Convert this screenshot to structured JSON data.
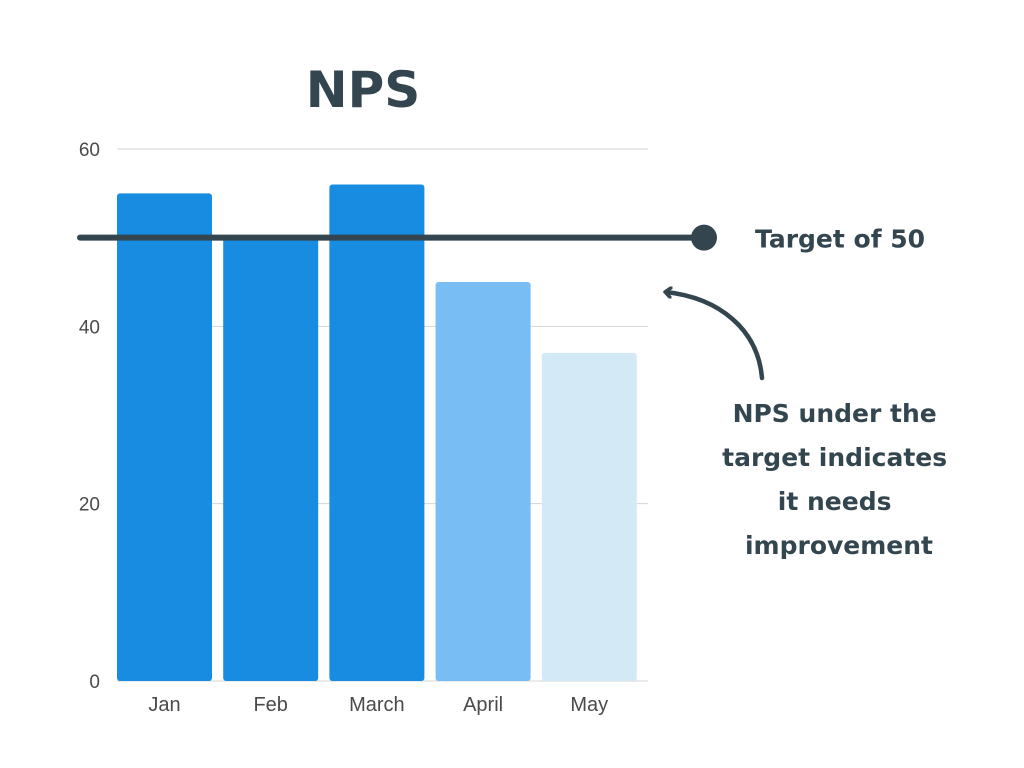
{
  "chart_data": {
    "type": "bar",
    "title": "NPS",
    "categories": [
      "Jan",
      "Feb",
      "March",
      "April",
      "May"
    ],
    "values": [
      55,
      50,
      56,
      45,
      37
    ],
    "bar_colors": [
      "#178ce0",
      "#178ce0",
      "#178ce0",
      "#78bdf4",
      "#d3e9f6"
    ],
    "ylim": [
      0,
      60
    ],
    "yticks": [
      0,
      20,
      40,
      60
    ],
    "grid": true,
    "target": {
      "value": 50,
      "label": "Target of 50",
      "color": "#33464f"
    },
    "annotation": {
      "lines": [
        "NPS under the",
        "target indicates",
        "it needs",
        "improvement"
      ],
      "color": "#33464f"
    }
  }
}
